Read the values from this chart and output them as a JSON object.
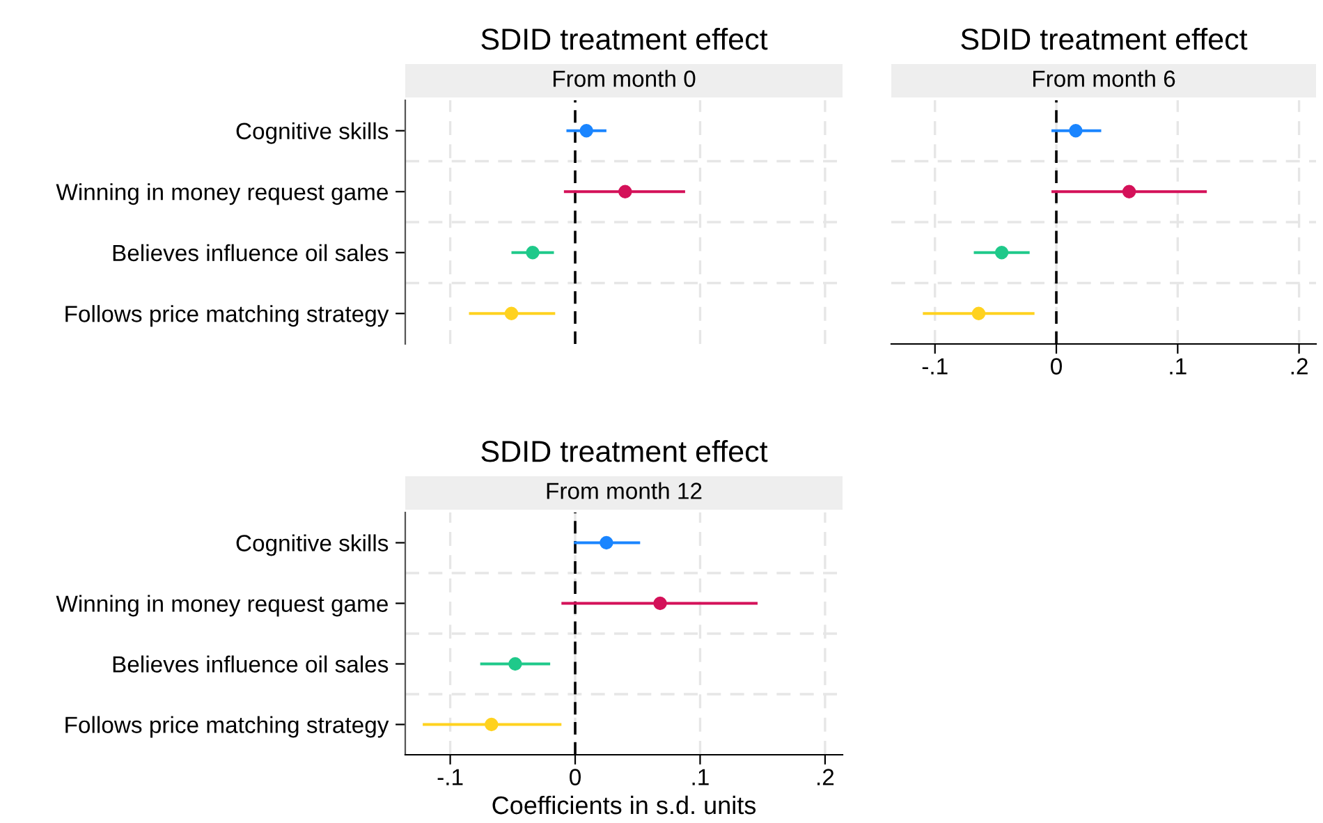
{
  "chart_data": [
    {
      "type": "scatter",
      "orientation": "horizontal",
      "title": "SDID treatment effect",
      "subtitle": "From month 0",
      "categories": [
        "Cognitive skills",
        "Winning in money request game",
        "Believes influence oil sales",
        "Follows price matching strategy"
      ],
      "values": [
        0.009,
        0.04,
        -0.034,
        -0.051
      ],
      "colors": [
        "#1a85ff",
        "#d41159",
        "#1fc98a",
        "#ffd21f"
      ],
      "errors": [
        [
          -0.007,
          0.025
        ],
        [
          -0.009,
          0.088
        ],
        [
          -0.051,
          -0.017
        ],
        [
          -0.085,
          -0.016
        ]
      ],
      "xlim": [
        -0.136,
        0.214
      ],
      "xticks": [
        {
          "value": -0.1,
          "label": null
        },
        {
          "value": 0.1,
          "label": null
        },
        {
          "value": 0.2,
          "label": null
        }
      ],
      "ref_lines": [
        {
          "axis": "x",
          "value": 0,
          "label": null,
          "color": "#000000",
          "line_style": "dashed"
        }
      ],
      "grid": true,
      "marker": "circle",
      "tick_labels": "y"
    },
    {
      "type": "scatter",
      "orientation": "horizontal",
      "title": "SDID treatment effect",
      "subtitle": "From month 6",
      "categories": [
        null,
        null,
        null,
        null
      ],
      "values": [
        0.016,
        0.06,
        -0.045,
        -0.064
      ],
      "colors": [
        "#1a85ff",
        "#d41159",
        "#1fc98a",
        "#ffd21f"
      ],
      "errors": [
        [
          -0.004,
          0.037
        ],
        [
          -0.004,
          0.124
        ],
        [
          -0.068,
          -0.022
        ],
        [
          -0.11,
          -0.018
        ]
      ],
      "xlim": [
        -0.136,
        0.214
      ],
      "xticks": [
        {
          "value": -0.1,
          "label": "-.1"
        },
        0,
        {
          "value": 0.1,
          "label": ".1"
        },
        {
          "value": 0.2,
          "label": ".2"
        }
      ],
      "ref_lines": [
        {
          "axis": "x",
          "value": 0,
          "label": null,
          "color": "#000000",
          "line_style": "dashed"
        }
      ],
      "grid": true,
      "marker": "circle",
      "tick_labels": "x"
    },
    {
      "type": "scatter",
      "orientation": "horizontal",
      "title": "SDID treatment effect",
      "subtitle": "From month 12",
      "xlabel": "Coefficients in s.d. units",
      "categories": [
        "Cognitive skills",
        "Winning in money request game",
        "Believes influence oil sales",
        "Follows price matching strategy"
      ],
      "values": [
        0.025,
        0.068,
        -0.048,
        -0.067
      ],
      "colors": [
        "#1a85ff",
        "#d41159",
        "#1fc98a",
        "#ffd21f"
      ],
      "errors": [
        [
          -0.001,
          0.052
        ],
        [
          -0.011,
          0.146
        ],
        [
          -0.076,
          -0.02
        ],
        [
          -0.122,
          -0.011
        ]
      ],
      "xlim": [
        -0.136,
        0.214
      ],
      "xticks": [
        {
          "value": -0.1,
          "label": "-.1"
        },
        0,
        {
          "value": 0.1,
          "label": ".1"
        },
        {
          "value": 0.2,
          "label": ".2"
        }
      ],
      "ref_lines": [
        {
          "axis": "x",
          "value": 0,
          "label": null,
          "color": "#000000",
          "line_style": "dashed"
        }
      ],
      "grid": true,
      "marker": "circle"
    }
  ]
}
